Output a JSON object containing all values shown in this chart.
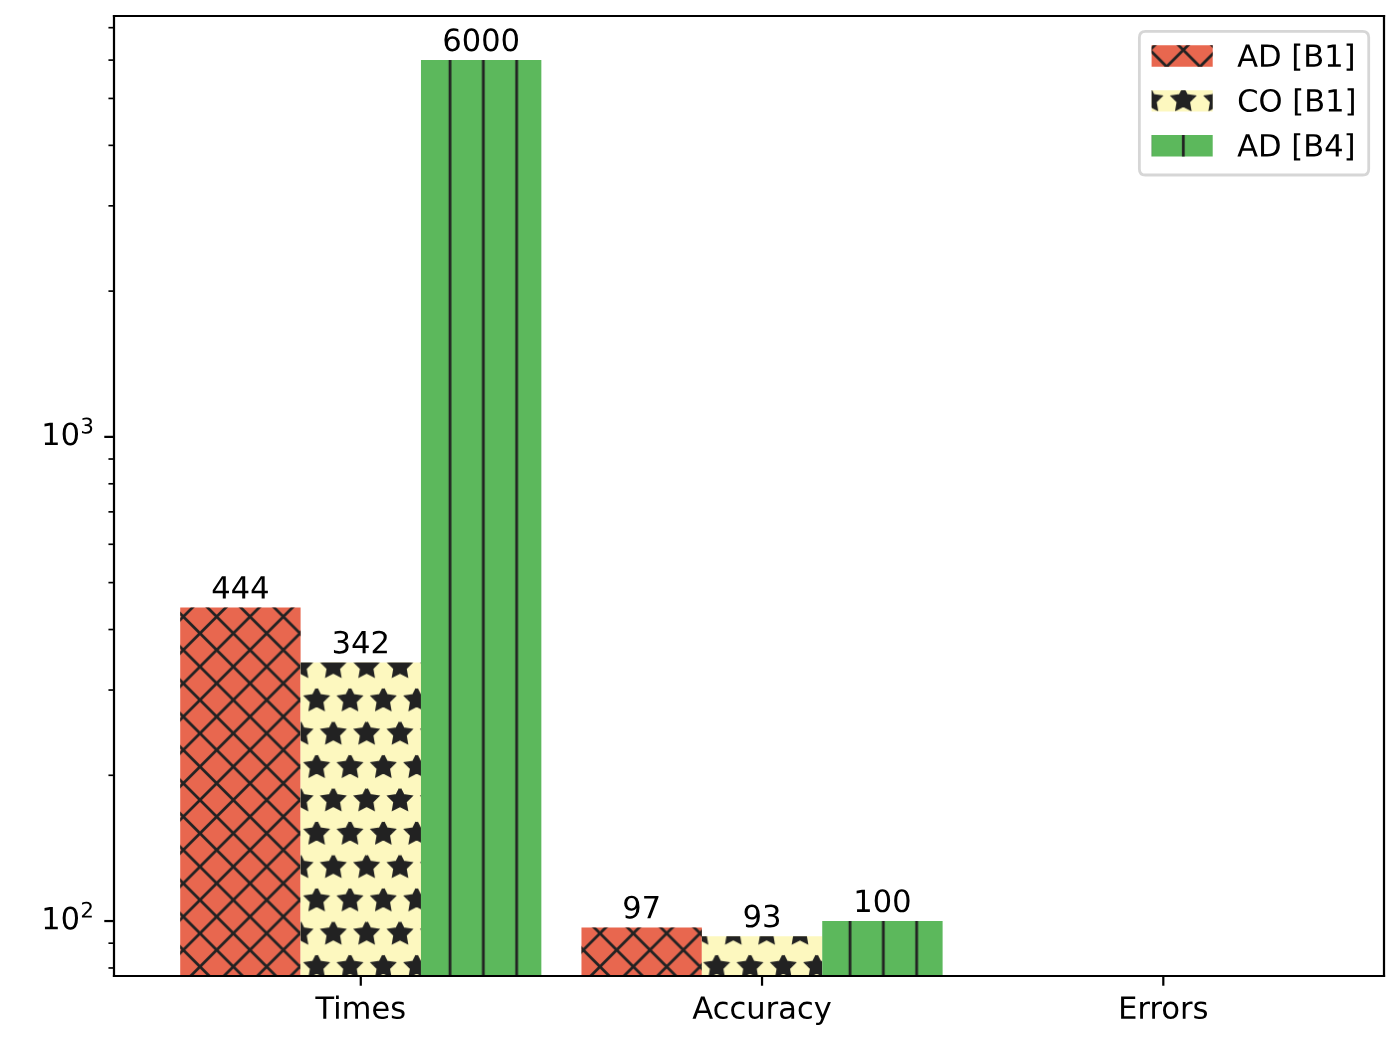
{
  "chart_data": {
    "type": "bar",
    "categories": [
      "Times",
      "Accuracy",
      "Errors"
    ],
    "series": [
      {
        "name": "AD [B1]",
        "color": "#e8674f",
        "values": [
          444,
          97,
          null
        ]
      },
      {
        "name": "CO [B1]",
        "color": "#fdf8bf",
        "values": [
          342,
          93,
          null
        ]
      },
      {
        "name": "AD [B4]",
        "color": "#5cb85c",
        "values": [
          6000,
          100,
          null
        ]
      }
    ],
    "log": "y",
    "ylim": [
      77,
      7400
    ],
    "yticks": [
      {
        "value": 100,
        "label": "10$^{2}$"
      },
      {
        "value": 1000,
        "label": "10$^{3}$"
      }
    ],
    "data_labels": true,
    "legend": "top right",
    "grid": false
  }
}
